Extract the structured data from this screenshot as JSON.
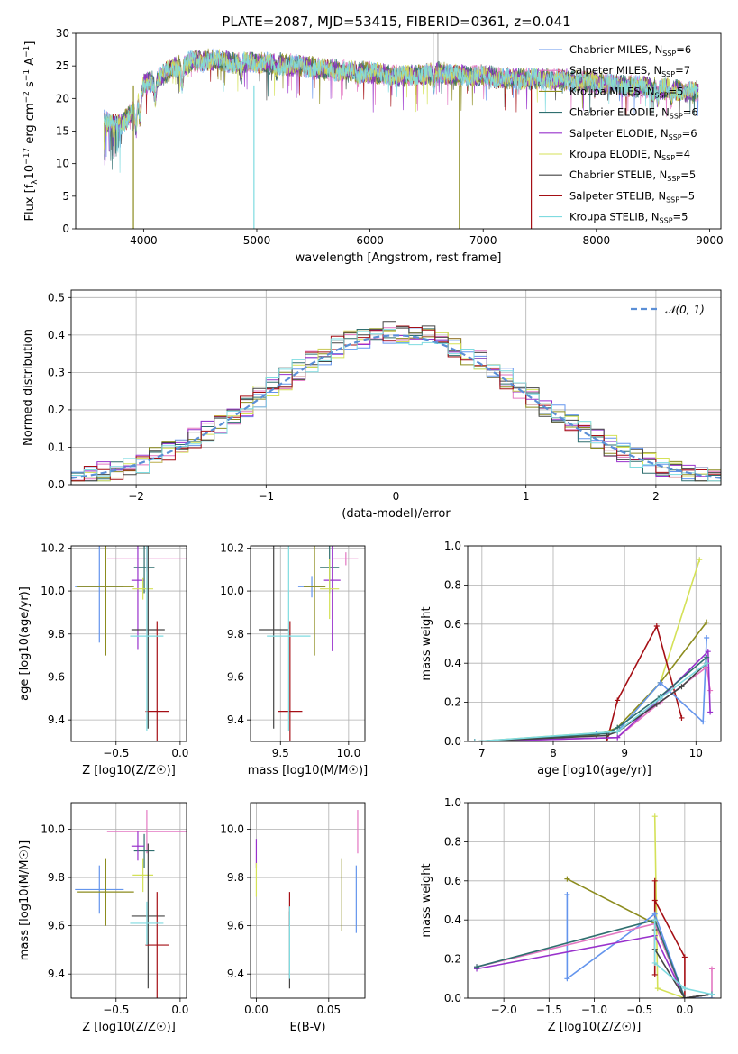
{
  "title": "PLATE=2087, MJD=53415, FIBERID=0361, z=0.041",
  "colors": {
    "Chabrier MILES": "#6495ed",
    "Salpeter MILES": "#e377c2",
    "Kroupa MILES": "#8c8c1e",
    "Chabrier ELODIE": "#2f6f6f",
    "Salpeter ELODIE": "#9932cc",
    "Kroupa ELODIE": "#d4e157",
    "Chabrier STELIB": "#444444",
    "Salpeter STELIB": "#a50f15",
    "Kroupa STELIB": "#7fdbe0"
  },
  "chart_data": [
    {
      "id": "spectrum",
      "type": "line",
      "xlabel": "wavelength [Angstrom, rest frame]",
      "ylabel": "Flux [f_λ10^-17 erg cm^-2 s^-1 A^-1]",
      "xlim": [
        3400,
        9100
      ],
      "ylim": [
        0,
        30
      ],
      "xticks": [
        "4000",
        "5000",
        "6000",
        "7000",
        "8000",
        "9000"
      ],
      "yticks": [
        "0",
        "5",
        "10",
        "15",
        "20",
        "25",
        "30"
      ],
      "legend": [
        {
          "name": "Chabrier MILES",
          "label": "Chabrier MILES, N",
          "sub": "SSP",
          "value": "=6"
        },
        {
          "name": "Salpeter MILES",
          "label": "Salpeter MILES, N",
          "sub": "SSP",
          "value": "=7"
        },
        {
          "name": "Kroupa MILES",
          "label": "Kroupa MILES, N",
          "sub": "SSP",
          "value": "=5"
        },
        {
          "name": "Chabrier ELODIE",
          "label": "Chabrier ELODIE, N",
          "sub": "SSP",
          "value": "=6"
        },
        {
          "name": "Salpeter ELODIE",
          "label": "Salpeter ELODIE, N",
          "sub": "SSP",
          "value": "=6"
        },
        {
          "name": "Kroupa ELODIE",
          "label": "Kroupa ELODIE, N",
          "sub": "SSP",
          "value": "=4"
        },
        {
          "name": "Chabrier STELIB",
          "label": "Chabrier STELIB, N",
          "sub": "SSP",
          "value": "=5"
        },
        {
          "name": "Salpeter STELIB",
          "label": "Salpeter STELIB, N",
          "sub": "SSP",
          "value": "=5"
        },
        {
          "name": "Kroupa STELIB",
          "label": "Kroupa STELIB, N",
          "sub": "SSP",
          "value": "=5"
        }
      ],
      "continuum": [
        [
          3650,
          17
        ],
        [
          3700,
          16
        ],
        [
          3800,
          16
        ],
        [
          3900,
          18
        ],
        [
          4000,
          22
        ],
        [
          4100,
          23
        ],
        [
          4200,
          24
        ],
        [
          4300,
          25
        ],
        [
          4400,
          25.5
        ],
        [
          4600,
          26
        ],
        [
          4800,
          25.5
        ],
        [
          5000,
          25.5
        ],
        [
          5200,
          25.3
        ],
        [
          5400,
          25
        ],
        [
          5600,
          24.5
        ],
        [
          5800,
          24.2
        ],
        [
          6000,
          24
        ],
        [
          6200,
          23.5
        ],
        [
          6400,
          23.5
        ],
        [
          6600,
          24
        ],
        [
          6800,
          23.5
        ],
        [
          7000,
          23.5
        ],
        [
          7200,
          23
        ],
        [
          7400,
          23
        ],
        [
          7600,
          23
        ],
        [
          7800,
          22.7
        ],
        [
          8000,
          22.5
        ],
        [
          8200,
          22
        ],
        [
          8400,
          21.8
        ],
        [
          8600,
          21.5
        ],
        [
          8800,
          21
        ],
        [
          8900,
          21
        ]
      ],
      "absorption_lines": [
        [
          3933,
          4
        ],
        [
          3969,
          4
        ],
        [
          4102,
          3
        ],
        [
          4340,
          3
        ],
        [
          4861,
          2
        ],
        [
          5175,
          1.5
        ],
        [
          5890,
          1
        ],
        [
          6563,
          2
        ],
        [
          8498,
          1
        ],
        [
          8542,
          1.5
        ],
        [
          8662,
          1.5
        ]
      ],
      "drop_lines": [
        {
          "name": "Kroupa MILES",
          "x": 3910
        },
        {
          "name": "Kroupa STELIB",
          "x": 4975
        },
        {
          "name": "Kroupa MILES",
          "x": 6790
        },
        {
          "name": "Salpeter STELIB",
          "x": 7425
        }
      ]
    },
    {
      "id": "residuals",
      "type": "histogram",
      "xlabel": "(data-model)/error",
      "ylabel": "Normed distribution",
      "xlim": [
        -2.5,
        2.5
      ],
      "ylim": [
        0,
        0.52
      ],
      "xticks": [
        "−2",
        "−1",
        "0",
        "1",
        "2"
      ],
      "yticks": [
        "0.0",
        "0.1",
        "0.2",
        "0.3",
        "0.4",
        "0.5"
      ],
      "bin_width": 0.1,
      "legend_label": "𝒩(0, 1)",
      "gaussian": {
        "mean": 0,
        "sigma": 1
      }
    },
    {
      "id": "age_vs_Z",
      "type": "errorbar",
      "xlabel": "Z [log10(Z/Z☉)]",
      "ylabel": "age  [log10(age/yr)]",
      "xlim": [
        -0.85,
        0.05
      ],
      "ylim": [
        9.3,
        10.21
      ],
      "xticks": [
        "−0.5",
        "0.0"
      ],
      "xtick_values": [
        -0.5,
        0.0
      ],
      "yticks": [
        "9.4",
        "9.6",
        "9.8",
        "10.0",
        "10.2"
      ],
      "ytick_values": [
        9.4,
        9.6,
        9.8,
        10.0,
        10.2
      ],
      "points": [
        {
          "name": "Chabrier MILES",
          "x": -0.63,
          "xerr": 0.19,
          "y": 10.02,
          "yerr": 0.26
        },
        {
          "name": "Salpeter MILES",
          "x": -0.26,
          "xerr": 0.31,
          "y": 10.15,
          "yerr": 0.06
        },
        {
          "name": "Kroupa MILES",
          "x": -0.58,
          "xerr": 0.22,
          "y": 10.02,
          "yerr": 0.32
        },
        {
          "name": "Chabrier ELODIE",
          "x": -0.28,
          "xerr": 0.08,
          "y": 10.11,
          "yerr": 0.12
        },
        {
          "name": "Salpeter ELODIE",
          "x": -0.33,
          "xerr": 0.05,
          "y": 10.05,
          "yerr": 0.32
        },
        {
          "name": "Kroupa ELODIE",
          "x": -0.29,
          "xerr": 0.08,
          "y": 10.01,
          "yerr": 0.05
        },
        {
          "name": "Chabrier STELIB",
          "x": -0.25,
          "xerr": 0.13,
          "y": 9.82,
          "yerr": 0.46
        },
        {
          "name": "Salpeter STELIB",
          "x": -0.18,
          "xerr": 0.09,
          "y": 9.44,
          "yerr": 0.42
        },
        {
          "name": "Kroupa STELIB",
          "x": -0.26,
          "xerr": 0.13,
          "y": 9.79,
          "yerr": 0.44
        }
      ]
    },
    {
      "id": "age_vs_mass",
      "type": "errorbar",
      "xlabel": "mass [log10(M/M☉)]",
      "ylabel": "",
      "xlim": [
        9.28,
        10.12
      ],
      "ylim": [
        9.3,
        10.21
      ],
      "xticks": [
        "9.5",
        "10.0"
      ],
      "xtick_values": [
        9.5,
        10.0
      ],
      "yticks": [
        "9.4",
        "9.6",
        "9.8",
        "10.0",
        "10.2"
      ],
      "ytick_values": [
        9.4,
        9.6,
        9.8,
        10.0,
        10.2
      ],
      "points": [
        {
          "name": "Chabrier MILES",
          "x": 9.73,
          "xerr": 0.1,
          "y": 10.02,
          "yerr": 0.05
        },
        {
          "name": "Salpeter MILES",
          "x": 9.98,
          "xerr": 0.09,
          "y": 10.15,
          "yerr": 0.03
        },
        {
          "name": "Kroupa MILES",
          "x": 9.75,
          "xerr": 0.08,
          "y": 10.02,
          "yerr": 0.32
        },
        {
          "name": "Chabrier ELODIE",
          "x": 9.86,
          "xerr": 0.07,
          "y": 10.11,
          "yerr": 0.12
        },
        {
          "name": "Salpeter ELODIE",
          "x": 9.88,
          "xerr": 0.06,
          "y": 10.05,
          "yerr": 0.33
        },
        {
          "name": "Kroupa ELODIE",
          "x": 9.86,
          "xerr": 0.07,
          "y": 10.01,
          "yerr": 0.14
        },
        {
          "name": "Chabrier STELIB",
          "x": 9.45,
          "xerr": 0.11,
          "y": 9.82,
          "yerr": 0.46
        },
        {
          "name": "Salpeter STELIB",
          "x": 9.57,
          "xerr": 0.09,
          "y": 9.44,
          "yerr": 0.42
        },
        {
          "name": "Kroupa STELIB",
          "x": 9.56,
          "xerr": 0.16,
          "y": 9.79,
          "yerr": 0.44
        }
      ]
    },
    {
      "id": "massweight_vs_age",
      "type": "line",
      "xlabel": "age  [log10(age/yr)]",
      "ylabel": "mass weight",
      "xlim": [
        6.8,
        10.35
      ],
      "ylim": [
        0,
        1.0
      ],
      "xticks": [
        "7",
        "8",
        "9",
        "10"
      ],
      "xtick_values": [
        7,
        8,
        9,
        10
      ],
      "yticks": [
        "0.0",
        "0.2",
        "0.4",
        "0.6",
        "0.8",
        "1.0"
      ],
      "ytick_values": [
        0,
        0.2,
        0.4,
        0.6,
        0.8,
        1.0
      ],
      "series": [
        {
          "name": "Kroupa ELODIE",
          "x": [
            6.9,
            8.9,
            9.5,
            10.05
          ],
          "y": [
            0.0,
            0.05,
            0.3,
            0.93
          ]
        },
        {
          "name": "Salpeter STELIB",
          "x": [
            6.9,
            8.75,
            8.9,
            9.45,
            9.8
          ],
          "y": [
            0.0,
            0.0,
            0.21,
            0.59,
            0.12
          ]
        },
        {
          "name": "Kroupa MILES",
          "x": [
            6.9,
            8.6,
            8.9,
            9.5,
            10.15
          ],
          "y": [
            0.0,
            0.03,
            0.07,
            0.3,
            0.61
          ]
        },
        {
          "name": "Chabrier MILES",
          "x": [
            6.9,
            8.6,
            8.9,
            9.5,
            10.1,
            10.15
          ],
          "y": [
            0.0,
            0.04,
            0.05,
            0.3,
            0.1,
            0.53
          ]
        },
        {
          "name": "Salpeter MILES",
          "x": [
            6.9,
            8.9,
            9.5,
            10.15,
            10.2
          ],
          "y": [
            0.0,
            0.02,
            0.2,
            0.38,
            0.26
          ]
        },
        {
          "name": "Salpeter ELODIE",
          "x": [
            6.9,
            8.9,
            9.5,
            10.17,
            10.2
          ],
          "y": [
            0.0,
            0.02,
            0.22,
            0.46,
            0.15
          ]
        },
        {
          "name": "Chabrier ELODIE",
          "x": [
            6.9,
            8.75,
            8.9,
            9.5,
            10.15
          ],
          "y": [
            0.0,
            0.04,
            0.07,
            0.23,
            0.43
          ]
        },
        {
          "name": "Chabrier STELIB",
          "x": [
            6.9,
            8.75,
            8.9,
            9.45,
            9.8,
            10.15
          ],
          "y": [
            0.0,
            0.03,
            0.05,
            0.19,
            0.28,
            0.4
          ]
        },
        {
          "name": "Kroupa STELIB",
          "x": [
            6.9,
            8.9,
            9.5,
            10.15
          ],
          "y": [
            0.0,
            0.05,
            0.22,
            0.4
          ]
        }
      ]
    },
    {
      "id": "mass_vs_Z",
      "type": "errorbar",
      "xlabel": "Z [log10(Z/Z☉)]",
      "ylabel": "mass [log10(M/M☉)]",
      "xlim": [
        -0.85,
        0.05
      ],
      "ylim": [
        9.3,
        10.11
      ],
      "xticks": [
        "−0.5",
        "0.0"
      ],
      "xtick_values": [
        -0.5,
        0.0
      ],
      "yticks": [
        "9.4",
        "9.6",
        "9.8",
        "10.0"
      ],
      "ytick_values": [
        9.4,
        9.6,
        9.8,
        10.0
      ],
      "points": [
        {
          "name": "Chabrier MILES",
          "x": -0.63,
          "xerr": 0.19,
          "y": 9.75,
          "yerr": 0.1
        },
        {
          "name": "Salpeter MILES",
          "x": -0.26,
          "xerr": 0.31,
          "y": 9.99,
          "yerr": 0.09
        },
        {
          "name": "Kroupa MILES",
          "x": -0.58,
          "xerr": 0.22,
          "y": 9.74,
          "yerr": 0.14
        },
        {
          "name": "Chabrier ELODIE",
          "x": -0.28,
          "xerr": 0.08,
          "y": 9.91,
          "yerr": 0.07
        },
        {
          "name": "Salpeter ELODIE",
          "x": -0.33,
          "xerr": 0.05,
          "y": 9.93,
          "yerr": 0.06
        },
        {
          "name": "Kroupa ELODIE",
          "x": -0.29,
          "xerr": 0.08,
          "y": 9.81,
          "yerr": 0.07
        },
        {
          "name": "Chabrier STELIB",
          "x": -0.25,
          "xerr": 0.13,
          "y": 9.64,
          "yerr": 0.3
        },
        {
          "name": "Salpeter STELIB",
          "x": -0.18,
          "xerr": 0.09,
          "y": 9.52,
          "yerr": 0.22
        },
        {
          "name": "Kroupa STELIB",
          "x": -0.26,
          "xerr": 0.13,
          "y": 9.61,
          "yerr": 0.09
        }
      ]
    },
    {
      "id": "mass_vs_EBV",
      "type": "errorbar",
      "xlabel": "E(B-V)",
      "ylabel": "",
      "xlim": [
        -0.004,
        0.075
      ],
      "ylim": [
        9.3,
        10.11
      ],
      "xticks": [
        "0.00",
        "0.05"
      ],
      "xtick_values": [
        0.0,
        0.05
      ],
      "yticks": [
        "9.4",
        "9.6",
        "9.8",
        "10.0"
      ],
      "ytick_values": [
        9.4,
        9.6,
        9.8,
        10.0
      ],
      "points": [
        {
          "name": "Chabrier MILES",
          "x": 0.069,
          "xerr": 0,
          "y": 9.71,
          "yerr": 0.14
        },
        {
          "name": "Salpeter MILES",
          "x": 0.07,
          "xerr": 0,
          "y": 9.99,
          "yerr": 0.09
        },
        {
          "name": "Kroupa MILES",
          "x": 0.059,
          "xerr": 0,
          "y": 9.73,
          "yerr": 0.15
        },
        {
          "name": "Salpeter ELODIE",
          "x": 0.0,
          "xerr": 0,
          "y": 9.9,
          "yerr": 0.06
        },
        {
          "name": "Kroupa ELODIE",
          "x": 0.0,
          "xerr": 0,
          "y": 9.79,
          "yerr": 0.07
        },
        {
          "name": "Chabrier STELIB",
          "x": 0.023,
          "xerr": 0,
          "y": 9.5,
          "yerr": 0.16
        },
        {
          "name": "Salpeter STELIB",
          "x": 0.023,
          "xerr": 0,
          "y": 9.67,
          "yerr": 0.07
        },
        {
          "name": "Kroupa STELIB",
          "x": 0.023,
          "xerr": 0,
          "y": 9.53,
          "yerr": 0.15
        }
      ]
    },
    {
      "id": "massweight_vs_Z",
      "type": "line",
      "xlabel": "Z [log10(Z/Z☉)]",
      "ylabel": "mass weight",
      "xlim": [
        -2.4,
        0.4
      ],
      "ylim": [
        0,
        1.0
      ],
      "xticks": [
        "−2.0",
        "−1.5",
        "−1.0",
        "−0.5",
        "0.0"
      ],
      "xtick_values": [
        -2.0,
        -1.5,
        -1.0,
        -0.5,
        0.0
      ],
      "yticks": [
        "0.0",
        "0.2",
        "0.4",
        "0.6",
        "0.8",
        "1.0"
      ],
      "ytick_values": [
        0,
        0.2,
        0.4,
        0.6,
        0.8,
        1.0
      ],
      "series": [
        {
          "name": "Kroupa ELODIE",
          "x": [
            -0.33,
            -0.3,
            0.0,
            0.3
          ],
          "y": [
            0.93,
            0.05,
            0.0,
            0.02
          ]
        },
        {
          "name": "Salpeter STELIB",
          "x": [
            -0.33,
            -0.33,
            -0.33,
            0.0,
            0.0,
            0.3
          ],
          "y": [
            0.6,
            0.12,
            0.5,
            0.21,
            0.0,
            0.02
          ]
        },
        {
          "name": "Kroupa MILES",
          "x": [
            -1.3,
            -0.33,
            0.0,
            0.3
          ],
          "y": [
            0.61,
            0.38,
            0.0,
            0.02
          ]
        },
        {
          "name": "Chabrier MILES",
          "x": [
            -1.3,
            -1.3,
            -0.33,
            0.0,
            0.3
          ],
          "y": [
            0.53,
            0.1,
            0.43,
            0.0,
            0.0
          ]
        },
        {
          "name": "Salpeter MILES",
          "x": [
            -2.3,
            -0.33,
            0.0,
            0.3,
            0.3
          ],
          "y": [
            0.16,
            0.38,
            0.0,
            0.02,
            0.15
          ]
        },
        {
          "name": "Salpeter ELODIE",
          "x": [
            -2.3,
            -0.33,
            0.0,
            0.3
          ],
          "y": [
            0.15,
            0.32,
            0.0,
            0.02
          ]
        },
        {
          "name": "Chabrier ELODIE",
          "x": [
            -2.3,
            -0.33,
            0.0,
            0.3
          ],
          "y": [
            0.16,
            0.4,
            0.0,
            0.02
          ]
        },
        {
          "name": "Chabrier STELIB",
          "x": [
            -0.33,
            -0.33,
            0.0,
            0.3
          ],
          "y": [
            0.35,
            0.25,
            0.0,
            0.02
          ]
        },
        {
          "name": "Kroupa STELIB",
          "x": [
            -0.33,
            -0.33,
            0.0,
            0.3
          ],
          "y": [
            0.4,
            0.18,
            0.05,
            0.02
          ]
        }
      ]
    }
  ]
}
